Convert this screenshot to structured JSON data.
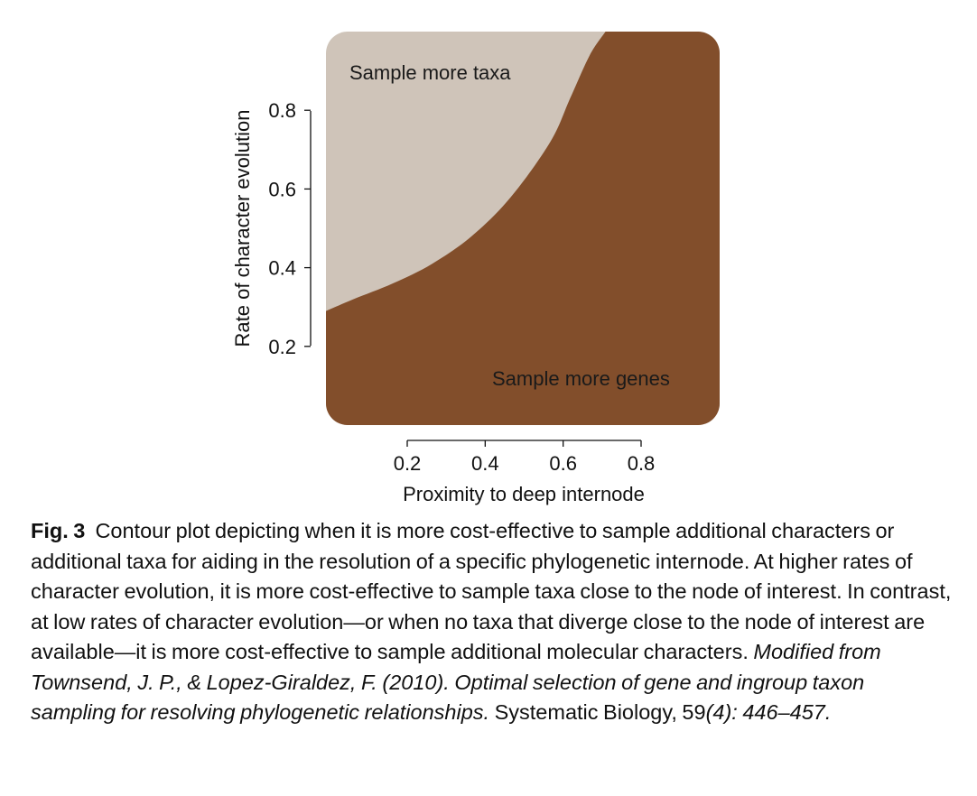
{
  "chart_data": {
    "type": "area",
    "xlabel": "Proximity to deep internode",
    "ylabel": "Rate of character evolution",
    "x_ticks": [
      "0.2",
      "0.4",
      "0.6",
      "0.8"
    ],
    "y_ticks": [
      "0.2",
      "0.4",
      "0.6",
      "0.8"
    ],
    "xlim": [
      0.03,
      1.03
    ],
    "ylim": [
      0.0,
      1.0
    ],
    "regions": [
      {
        "label": "Sample more taxa",
        "color": "#cfc4b9",
        "position": "above boundary"
      },
      {
        "label": "Sample more genes",
        "color": "#824e2b",
        "position": "below boundary"
      }
    ],
    "boundary": {
      "x": [
        0.03,
        0.1,
        0.2,
        0.3,
        0.4,
        0.5,
        0.6,
        0.65,
        0.7,
        0.74
      ],
      "y": [
        0.29,
        0.32,
        0.36,
        0.41,
        0.48,
        0.58,
        0.72,
        0.83,
        0.94,
        1.0
      ]
    },
    "grid": false,
    "legend": "none"
  },
  "caption": {
    "fig_label": "Fig. 3",
    "text": "Contour plot depicting when it is more cost-effective to sample additional characters or additional taxa for aiding in the resolution of a specific phylogenetic internode. At higher rates of character evolution, it is more cost-effective to sample taxa close to the node of interest. In contrast, at low rates of character evolution—or when no taxa that diverge close to the node of interest are available—it is more cost-effective to sample additional molecular characters.",
    "citation_italic": "Modified from Townsend, J. P., & Lopez-Giraldez, F. (2010). Optimal selection of gene and ingroup taxon sampling for resolving phylogenetic relationships.",
    "journal": "Systematic Biology, 59",
    "issue_italic": "(4): 446–457."
  }
}
